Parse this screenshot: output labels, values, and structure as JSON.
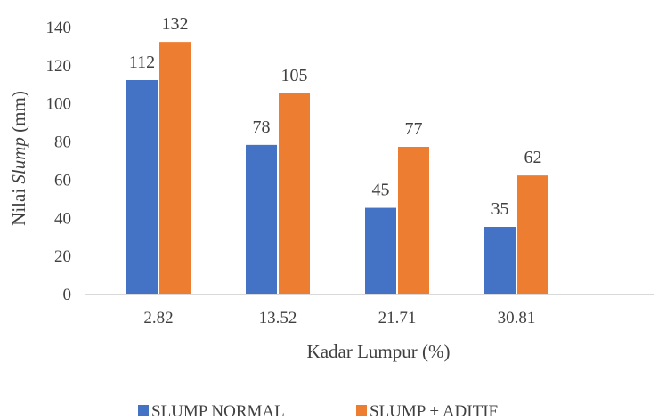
{
  "chart_data": {
    "type": "bar",
    "categories": [
      "2.82",
      "13.52",
      "21.71",
      "30.81"
    ],
    "series": [
      {
        "name": "SLUMP NORMAL",
        "values": [
          112,
          78,
          45,
          35
        ],
        "color": "#4472c4"
      },
      {
        "name": "SLUMP + ADITIF",
        "values": [
          132,
          105,
          77,
          62
        ],
        "color": "#ed7d31"
      }
    ],
    "data_labels": {
      "SLUMP NORMAL": [
        "112",
        "78",
        "45",
        "35"
      ],
      "SLUMP + ADITIF": [
        "132",
        "105",
        "77",
        "62"
      ]
    },
    "y_ticks": [
      "0",
      "20",
      "40",
      "60",
      "80",
      "100",
      "120",
      "140"
    ],
    "xlabel": "Kadar Lumpur (%)",
    "ylabel": {
      "prefix": "Nilai ",
      "emphasis": "Slump",
      "suffix": " (mm)"
    },
    "ylim": [
      0,
      140
    ],
    "grid": false,
    "legend_position": "bottom"
  }
}
